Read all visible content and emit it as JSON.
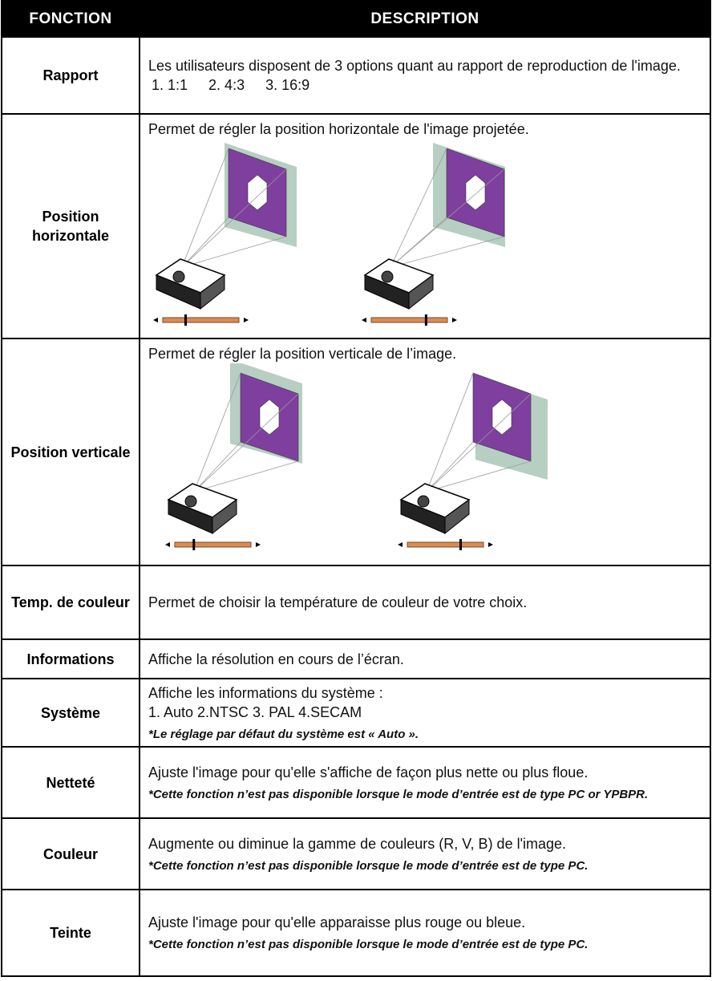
{
  "table": {
    "header": [
      "FONCTION",
      "DESCRIPTION"
    ],
    "rows": [
      {
        "label": "Rapport",
        "text": [
          "Les utilisateurs disposent de 3 options quant au rapport de reproduction de l'image."
        ],
        "options": [
          "1. 1:1",
          "2. 4:3",
          "3. 16:9"
        ]
      },
      {
        "label": "Position horizontale",
        "text": [
          "Permet de régler la position horizontale de l'image projetée."
        ]
      },
      {
        "label": "Position verticale",
        "text": [
          "Permet de régler la position verticale de l’image."
        ]
      },
      {
        "label": "Temp. de couleur",
        "text": [
          "Permet de choisir la température de couleur de votre choix."
        ]
      },
      {
        "label": "Informations",
        "text": [
          "Affiche la résolution en cours de l’écran."
        ]
      },
      {
        "label": "Système",
        "text": [
          "Affiche les informations du système :",
          "1. Auto 2.NTSC 3. PAL 4.SECAM"
        ],
        "note": "*Le réglage par défaut du système est « Auto »."
      },
      {
        "label": "Netteté",
        "text": [
          "Ajuste l'image pour qu'elle s'affiche de façon plus nette ou plus floue."
        ],
        "note": "*Cette fonction n’est pas disponible lorsque le mode d’entrée est de type PC or YPBPR."
      },
      {
        "label": "Couleur",
        "text": [
          "Augmente ou diminue la gamme de couleurs (R, V, B) de l'image."
        ],
        "note": "*Cette fonction n’est pas disponible lorsque le mode d’entrée est de type PC."
      },
      {
        "label": "Teinte",
        "text": [
          "Ajuste l'image pour qu'elle apparaisse plus rouge ou bleue."
        ],
        "note": "*Cette fonction n’est pas disponible lorsque le mode d’entrée est de type PC."
      }
    ]
  }
}
